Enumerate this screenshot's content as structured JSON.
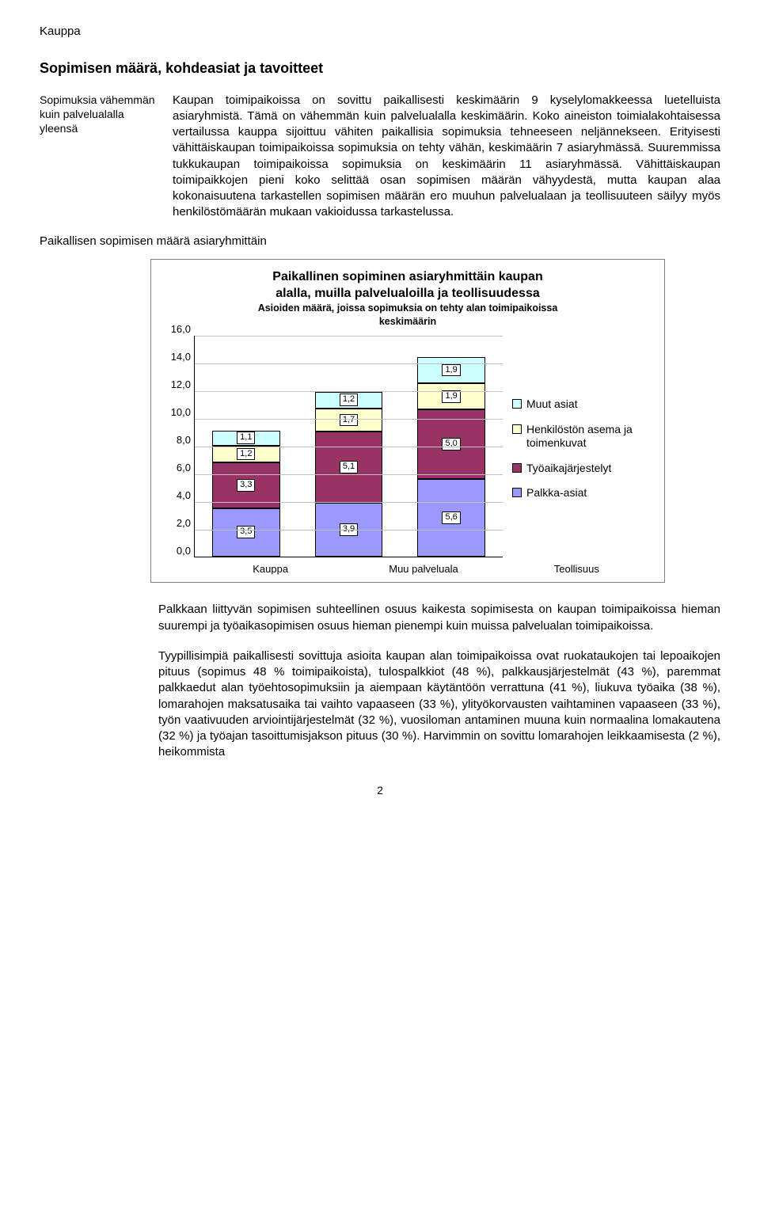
{
  "doc_title": "Kauppa",
  "section_heading": "Sopimisen määrä, kohdeasiat ja tavoitteet",
  "side_note": "Sopimuksia vähemmän kuin palvelualalla yleensä",
  "main_para_1": "Kaupan toimipaikoissa on sovittu paikallisesti keskimäärin 9 kyselylomakkeessa luetelluista asiaryhmistä. Tämä on vähemmän kuin palvelualalla keskimäärin. Koko aineiston toimialakohtaisessa vertailussa kauppa sijoittuu vähiten paikallisia sopimuksia tehneeseen neljännekseen. Erityisesti vähittäiskaupan toimipaikoissa sopimuksia on tehty vähän, keskimäärin 7 asiaryhmässä. Suuremmissa tukkukaupan toimipaikoissa sopimuksia on keskimäärin 11 asiaryhmässä. Vähittäiskaupan toimipaikkojen pieni koko selittää osan sopimisen määrän vähyydestä, mutta kaupan alaa kokonaisuutena tarkastellen sopimisen määrän ero muuhun palvelualaan ja teollisuuteen säilyy myös henkilöstömäärän mukaan vakioidussa tarkastelussa.",
  "subheading": "Paikallisen sopimisen määrä asiaryhmittäin",
  "chart": {
    "type": "stacked-bar",
    "title_line1": "Paikallinen sopiminen asiaryhmittäin kaupan",
    "title_line2": "alalla, muilla palvelualoilla ja teollisuudessa",
    "subtitle_line1": "Asioiden määrä, joissa sopimuksia on tehty alan toimipaikoissa",
    "subtitle_line2": "keskimäärin",
    "ylim": [
      0,
      16
    ],
    "ytick_step": 2,
    "yticks": [
      "16,0",
      "14,0",
      "12,0",
      "10,0",
      "8,0",
      "6,0",
      "4,0",
      "2,0",
      "0,0"
    ],
    "categories": [
      "Kauppa",
      "Muu palveluala",
      "Teollisuus"
    ],
    "series": [
      {
        "name": "Muut asiat",
        "color": "#ccffff"
      },
      {
        "name": "Henkilöstön asema ja toimenkuvat",
        "color": "#ffffcc"
      },
      {
        "name": "Työaikajärjestelyt",
        "color": "#993366"
      },
      {
        "name": "Palkka-asiat",
        "color": "#9999ff"
      }
    ],
    "legend_order": [
      "Muut asiat",
      "Henkilöstön asema ja toimenkuvat",
      "Työaikajärjestelyt",
      "Palkka-asiat"
    ],
    "data": {
      "Kauppa": {
        "Palkka-asiat": 3.5,
        "Työaikajärjestelyt": 3.3,
        "Henkilöstön asema ja toimenkuvat": 1.2,
        "Muut asiat": 1.1
      },
      "Muu palveluala": {
        "Palkka-asiat": 3.9,
        "Työaikajärjestelyt": 5.1,
        "Henkilöstön asema ja toimenkuvat": 1.7,
        "Muut asiat": 1.2
      },
      "Teollisuus": {
        "Palkka-asiat": 5.6,
        "Työaikajärjestelyt": 5.0,
        "Henkilöstön asema ja toimenkuvat": 1.9,
        "Muut asiat": 1.9
      }
    },
    "labels": {
      "Kauppa": {
        "Palkka-asiat": "3,5",
        "Työaikajärjestelyt": "3,3",
        "Henkilöstön asema ja toimenkuvat": "1,2",
        "Muut asiat": "1,1"
      },
      "Muu palveluala": {
        "Palkka-asiat": "3,9",
        "Työaikajärjestelyt": "5,1",
        "Henkilöstön asema ja toimenkuvat": "1,7",
        "Muut asiat": "1,2"
      },
      "Teollisuus": {
        "Palkka-asiat": "5,6",
        "Työaikajärjestelyt": "5,0",
        "Henkilöstön asema ja toimenkuvat": "1,9",
        "Muut asiat": "1,9"
      }
    },
    "stack_order": [
      "Palkka-asiat",
      "Työaikajärjestelyt",
      "Henkilöstön asema ja toimenkuvat",
      "Muut asiat"
    ],
    "grid_color": "#c0c0c0",
    "background_color": "#ffffff"
  },
  "para_2": "Palkkaan liittyvän sopimisen suhteellinen osuus kaikesta sopimisesta on kaupan toimipaikoissa hieman suurempi ja työaikasopimisen osuus hieman pienempi kuin muissa palvelualan toimipaikoissa.",
  "para_3": "Tyypillisimpiä paikallisesti sovittuja asioita kaupan alan toimipaikoissa ovat ruokataukojen tai lepoaikojen pituus (sopimus 48 % toimipaikoista), tulospalkkiot (48 %), palkkausjärjestelmät (43 %), paremmat palkkaedut alan työehtosopimuksiin ja aiempaan käytäntöön verrattuna (41 %), liukuva työaika (38 %), lomarahojen maksatusaika tai vaihto vapaaseen (33 %), ylityökorvausten vaihtaminen vapaaseen (33 %), työn vaativuuden arviointijärjestelmät (32 %), vuosiloman antaminen muuna kuin normaalina lomakautena (32 %) ja työajan tasoittumisjakson pituus (30 %). Harvimmin on sovittu lomarahojen leikkaamisesta (2 %), heikommista",
  "page_number": "2"
}
